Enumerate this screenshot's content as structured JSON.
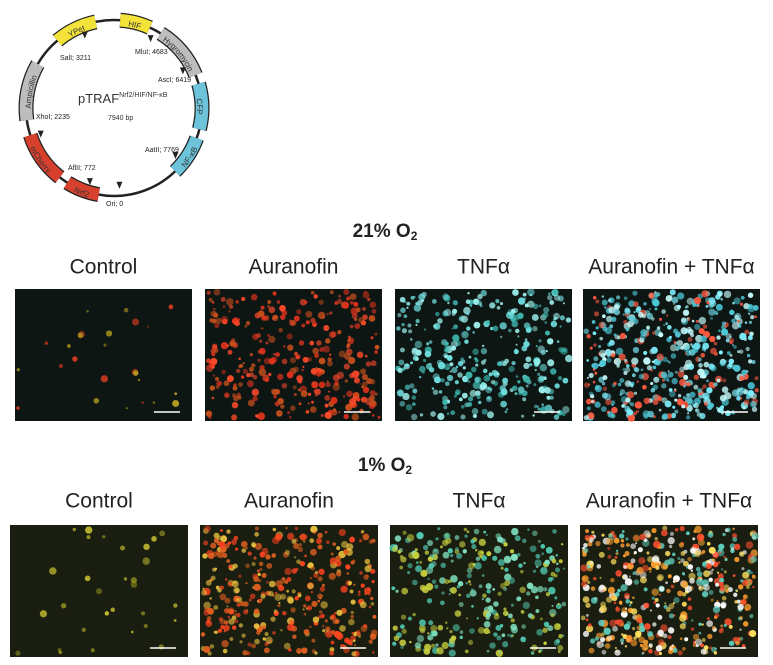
{
  "plasmid": {
    "name": "pTRAF",
    "name_sup": "Nrf2/HIF/NF-κB",
    "size": "7940 bp",
    "features": [
      "YPet",
      "HIF",
      "Hygromycin",
      "CFP",
      "NF-κB",
      "Nrf2",
      "mCherry",
      "Ampicillin"
    ],
    "sites": [
      "SalI; 3211",
      "MluI; 4683",
      "AscI; 6419",
      "XhoI; 2235",
      "AatII; 7769",
      "AflII; 772",
      "Ori; 0"
    ]
  },
  "conditions": [
    {
      "title": "21% O",
      "title_sub": "2",
      "panels": [
        "Control",
        "Auranofin",
        "TNFα",
        "Auranofin + TNFα"
      ]
    },
    {
      "title": "1% O",
      "title_sub": "2",
      "panels": [
        "Control",
        "Auranofin",
        "TNFα",
        "Auranofin + TNFα"
      ]
    }
  ]
}
